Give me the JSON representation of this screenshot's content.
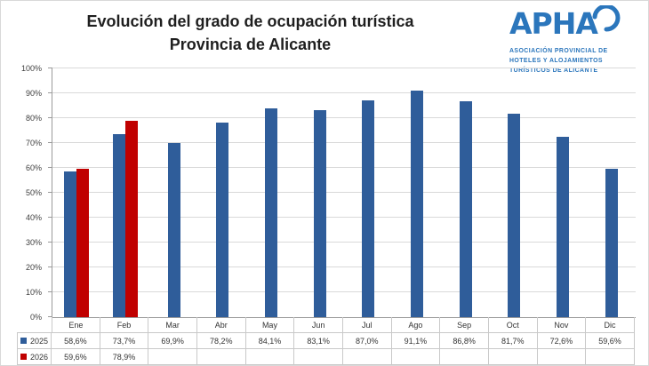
{
  "header": {
    "title_line1": "Evolución del grado de ocupación turística",
    "title_line2": "Provincia de Alicante"
  },
  "logo": {
    "name": "APHA",
    "sub_line1": "ASOCIACIÓN PROVINCIAL DE",
    "sub_line2": "HOTELES Y ALOJAMIENTOS",
    "sub_line3": "TURÍSTICOS DE ALICANTE",
    "color": "#2b76bc"
  },
  "chart_data": {
    "type": "bar",
    "title": "Evolución del grado de ocupación turística – Provincia de Alicante",
    "categories": [
      "Ene",
      "Feb",
      "Mar",
      "Abr",
      "May",
      "Jun",
      "Jul",
      "Ago",
      "Sep",
      "Oct",
      "Nov",
      "Dic"
    ],
    "series": [
      {
        "name": "2025",
        "color": "#2f5d9a",
        "values": [
          58.6,
          73.7,
          69.9,
          78.2,
          84.1,
          83.1,
          87.0,
          91.1,
          86.8,
          81.7,
          72.6,
          59.6
        ],
        "labels": [
          "58,6%",
          "73,7%",
          "69,9%",
          "78,2%",
          "84,1%",
          "83,1%",
          "87,0%",
          "91,1%",
          "86,8%",
          "81,7%",
          "72,6%",
          "59,6%"
        ]
      },
      {
        "name": "2026",
        "color": "#c00000",
        "values": [
          59.6,
          78.9,
          null,
          null,
          null,
          null,
          null,
          null,
          null,
          null,
          null,
          null
        ],
        "labels": [
          "59,6%",
          "78,9%",
          "",
          "",
          "",
          "",
          "",
          "",
          "",
          "",
          "",
          ""
        ]
      }
    ],
    "xlabel": "",
    "ylabel": "",
    "ylim": [
      0,
      100
    ],
    "yticks": [
      "0%",
      "10%",
      "20%",
      "30%",
      "40%",
      "50%",
      "60%",
      "70%",
      "80%",
      "90%",
      "100%"
    ],
    "grid": true,
    "legend_position": "table-left"
  }
}
